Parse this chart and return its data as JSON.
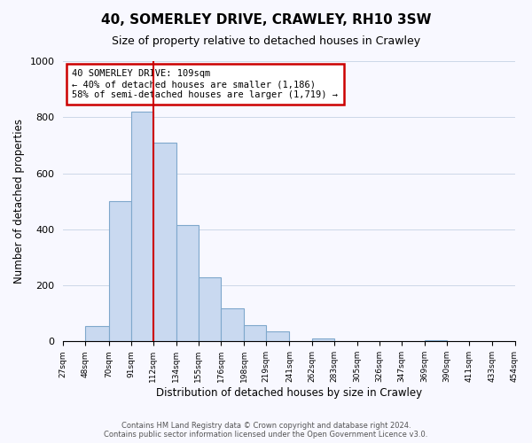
{
  "title": "40, SOMERLEY DRIVE, CRAWLEY, RH10 3SW",
  "subtitle": "Size of property relative to detached houses in Crawley",
  "xlabel": "Distribution of detached houses by size in Crawley",
  "ylabel": "Number of detached properties",
  "bar_edges": [
    27,
    48,
    70,
    91,
    112,
    134,
    155,
    176,
    198,
    219,
    241,
    262,
    283,
    305,
    326,
    347,
    369,
    390,
    411,
    433,
    454
  ],
  "bar_heights": [
    0,
    55,
    500,
    820,
    710,
    415,
    230,
    118,
    57,
    35,
    0,
    12,
    0,
    0,
    0,
    0,
    5,
    0,
    0,
    0
  ],
  "bar_color": "#c9d9f0",
  "bar_edge_color": "#7fa8cc",
  "vline_x": 112,
  "vline_color": "#cc0000",
  "annotation_box_color": "#cc0000",
  "annotation_lines": [
    "40 SOMERLEY DRIVE: 109sqm",
    "← 40% of detached houses are smaller (1,186)",
    "58% of semi-detached houses are larger (1,719) →"
  ],
  "ylim": [
    0,
    1000
  ],
  "tick_labels": [
    "27sqm",
    "48sqm",
    "70sqm",
    "91sqm",
    "112sqm",
    "134sqm",
    "155sqm",
    "176sqm",
    "198sqm",
    "219sqm",
    "241sqm",
    "262sqm",
    "283sqm",
    "305sqm",
    "326sqm",
    "347sqm",
    "369sqm",
    "390sqm",
    "411sqm",
    "433sqm",
    "454sqm"
  ],
  "footer_line1": "Contains HM Land Registry data © Crown copyright and database right 2024.",
  "footer_line2": "Contains public sector information licensed under the Open Government Licence v3.0.",
  "bg_color": "#f8f8ff",
  "grid_color": "#ccd8e8"
}
